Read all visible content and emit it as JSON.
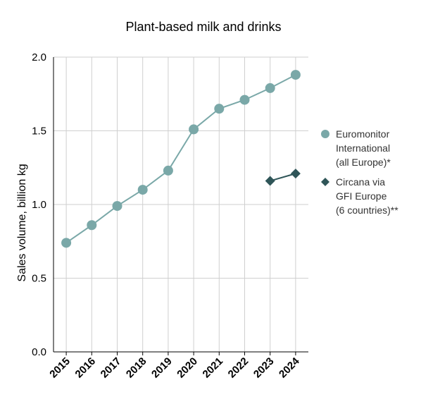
{
  "chart_data": {
    "type": "line",
    "title": "Plant-based milk and drinks",
    "xlabel": "",
    "ylabel": "Sales volume, billion kg",
    "ylim": [
      0,
      2.0
    ],
    "yticks": [
      "0.0",
      "0.5",
      "1.0",
      "1.5",
      "2.0"
    ],
    "categories": [
      "2015",
      "2016",
      "2017",
      "2018",
      "2019",
      "2020",
      "2021",
      "2022",
      "2023",
      "2024"
    ],
    "grid": true,
    "legend_position": "right",
    "series": [
      {
        "name_lines": [
          "Euromonitor",
          "International",
          "(all Europe)*"
        ],
        "marker": "circle",
        "color": "#7aa8a8",
        "values": [
          0.74,
          0.86,
          0.99,
          1.1,
          1.23,
          1.51,
          1.65,
          1.71,
          1.79,
          1.88
        ]
      },
      {
        "name_lines": [
          "Circana via",
          "GFI Europe",
          "(6 countries)**"
        ],
        "marker": "diamond",
        "color": "#2f5558",
        "values": [
          null,
          null,
          null,
          null,
          null,
          null,
          null,
          null,
          1.16,
          1.21
        ]
      }
    ]
  }
}
